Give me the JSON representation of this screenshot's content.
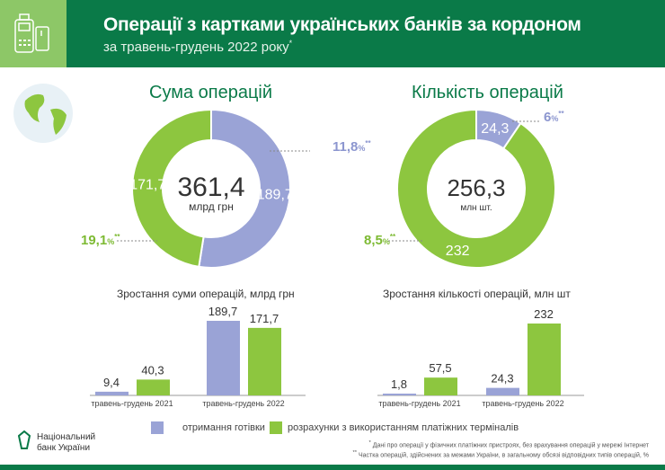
{
  "header": {
    "title": "Операції з картками українських банків за кордоном",
    "subtitle": "за травень-грудень 2022 року",
    "subtitle_mark": "*",
    "icon": "pos-terminal-card-icon"
  },
  "colors": {
    "cash": "#9aa3d6",
    "terminals": "#8dc63f",
    "brand": "#0a7a48",
    "header_accent": "#8dc767"
  },
  "donuts": [
    {
      "title": "Сума операцій",
      "total": "361,4",
      "unit": "млрд грн",
      "segments": [
        {
          "label": "189,7",
          "value": 189.7,
          "series": "cash"
        },
        {
          "label": "171,7",
          "value": 171.7,
          "series": "terminals"
        }
      ],
      "shares": [
        {
          "value": "11,8",
          "suffix": "%",
          "mark": "**",
          "series": "cash"
        },
        {
          "value": "19,1",
          "suffix": "%",
          "mark": "**",
          "series": "terminals"
        }
      ]
    },
    {
      "title": "Кількість операцій",
      "total": "256,3",
      "unit": "млн шт.",
      "segments": [
        {
          "label": "24,3",
          "value": 24.3,
          "series": "cash"
        },
        {
          "label": "232",
          "value": 232,
          "series": "terminals"
        }
      ],
      "shares": [
        {
          "value": "6",
          "suffix": "%",
          "mark": "**",
          "series": "cash"
        },
        {
          "value": "8,5",
          "suffix": "%",
          "mark": "**",
          "series": "terminals"
        }
      ]
    }
  ],
  "chart_data": [
    {
      "type": "bar",
      "title": "Зростання суми операцій, млрд грн",
      "categories": [
        "травень-грудень 2021",
        "травень-грудень 2022"
      ],
      "series": [
        {
          "name": "отримання готівки",
          "values": [
            9.4,
            189.7
          ],
          "labels": [
            "9,4",
            "189,7"
          ]
        },
        {
          "name": "розрахунки з використанням платіжних терміналів",
          "values": [
            40.3,
            171.7
          ],
          "labels": [
            "40,3",
            "171,7"
          ]
        }
      ]
    },
    {
      "type": "bar",
      "title": "Зростання кількості операцій, млн шт",
      "categories": [
        "травень-грудень 2021",
        "травень-грудень 2022"
      ],
      "series": [
        {
          "name": "отримання готівки",
          "values": [
            1.8,
            24.3
          ],
          "labels": [
            "1,8",
            "24,3"
          ]
        },
        {
          "name": "розрахунки з використанням платіжних терміналів",
          "values": [
            57.5,
            232
          ],
          "labels": [
            "57,5",
            "232"
          ]
        }
      ]
    }
  ],
  "legend": [
    {
      "label": "отримання готівки",
      "series": "cash"
    },
    {
      "label": "розрахунки з використанням платіжних терміналів",
      "series": "terminals"
    }
  ],
  "logo": {
    "line1": "Національний",
    "line2": "банк України"
  },
  "notes": [
    "Дані про операції у фізичних платіжних пристроях, без врахування операцій у мережі Інтернет",
    "Частка операцій, здійснених за межами України, в загальному обсязі відповідних типів операцій, %"
  ],
  "note_marks": [
    "*",
    "**"
  ]
}
